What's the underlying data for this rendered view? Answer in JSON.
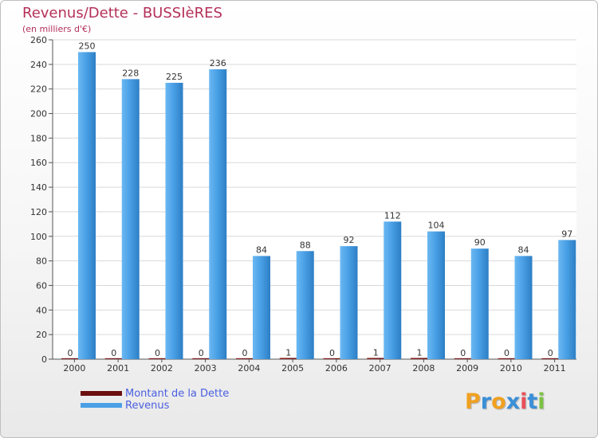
{
  "chart_data": {
    "type": "bar",
    "title": "Revenus/Dette - BUSSIèRES",
    "subtitle": "(en milliers d'€)",
    "categories": [
      "2000",
      "2001",
      "2002",
      "2003",
      "2004",
      "2005",
      "2006",
      "2007",
      "2008",
      "2009",
      "2010",
      "2011"
    ],
    "series": [
      {
        "name": "Montant de la Dette",
        "color": "#6b0f0f",
        "values": [
          0,
          0,
          0,
          0,
          0,
          1,
          0,
          1,
          1,
          0,
          0,
          0
        ]
      },
      {
        "name": "Revenus",
        "color": "#4aa0e6",
        "values": [
          250,
          228,
          225,
          236,
          84,
          88,
          92,
          112,
          104,
          90,
          84,
          97
        ]
      }
    ],
    "ylim": [
      0,
      260
    ],
    "yticks": [
      0,
      20,
      40,
      60,
      80,
      100,
      120,
      140,
      160,
      180,
      200,
      220,
      240,
      260
    ],
    "xlabel": "",
    "ylabel": "",
    "grid": true,
    "legend": "bottom-left"
  },
  "logo": {
    "text": "Proxiti",
    "letters": [
      {
        "ch": "P",
        "color": "#f0a020"
      },
      {
        "ch": "r",
        "color": "#3a8fd8"
      },
      {
        "ch": "o",
        "color": "#f0a020"
      },
      {
        "ch": "x",
        "color": "#3a8fd8"
      },
      {
        "ch": "i",
        "color": "#e8505a"
      },
      {
        "ch": "t",
        "color": "#3a8fd8"
      },
      {
        "ch": "i",
        "color": "#7cc242"
      }
    ]
  }
}
